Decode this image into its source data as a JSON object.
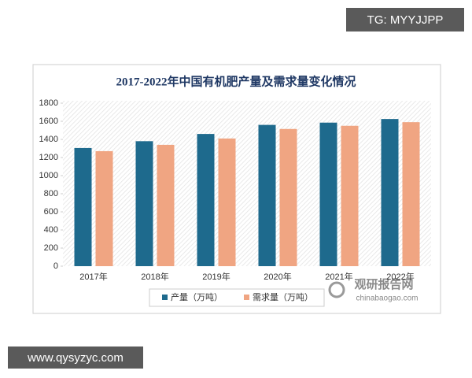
{
  "chart_data": {
    "type": "bar",
    "title": "2017-2022年中国有机肥产量及需求量变化情况",
    "categories": [
      "2017年",
      "2018年",
      "2019年",
      "2020年",
      "2021年",
      "2022年"
    ],
    "series": [
      {
        "name": "产量（万吨）",
        "color": "#1e6a8d",
        "values": [
          1305,
          1380,
          1460,
          1560,
          1585,
          1625
        ]
      },
      {
        "name": "需求量（万吨）",
        "color": "#f0a582",
        "values": [
          1270,
          1340,
          1410,
          1515,
          1550,
          1590
        ]
      }
    ],
    "ylim": [
      0,
      1800
    ],
    "yticks": [
      0,
      200,
      400,
      600,
      800,
      1000,
      1200,
      1400,
      1600,
      1800
    ],
    "legend": "bottom"
  },
  "watermarks": {
    "top": "TG: MYYJJPP",
    "bottom": "www.qysyzyc.com"
  },
  "logo": {
    "name": "观研报告网",
    "url": "chinabaogao.com"
  }
}
